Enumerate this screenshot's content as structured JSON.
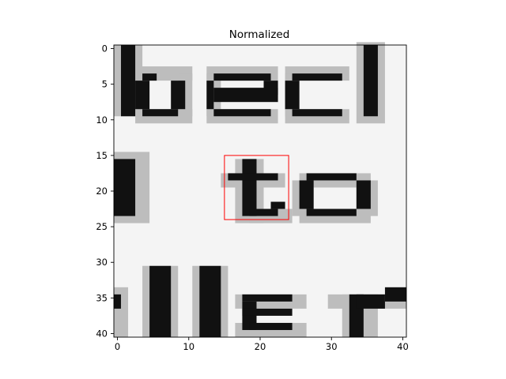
{
  "chart_data": {
    "type": "heatmap",
    "title": "Normalized",
    "xlabel": "",
    "ylabel": "",
    "x_ticks": [
      0,
      10,
      20,
      30,
      40
    ],
    "y_ticks": [
      0,
      5,
      10,
      15,
      20,
      25,
      30,
      35,
      40
    ],
    "xlim": [
      -0.5,
      40.5
    ],
    "ylim": [
      40.5,
      -0.5
    ],
    "grid": false,
    "colormap": "gray",
    "image_content": "grayscale crop of printed text (fragments reading 'bed', 'l to', 'ller')",
    "annotations": [
      {
        "type": "rectangle",
        "x0": 15,
        "y0": 15,
        "x1": 24,
        "y1": 24,
        "color": "#ff0000"
      }
    ],
    "colors": {
      "box": "#ff0000",
      "ink": "#111111",
      "paper": "#f4f4f4"
    }
  }
}
